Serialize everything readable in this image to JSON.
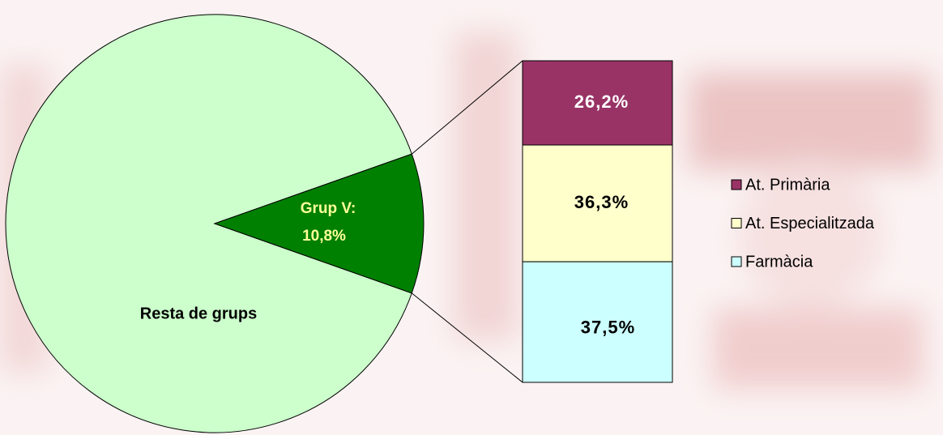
{
  "chart_data": {
    "type": "bar-of-pie",
    "pie": {
      "slices": [
        {
          "label": "Resta de grups",
          "value": 89.2,
          "color": "#ccffcc"
        },
        {
          "label": "Grup V:",
          "value": 10.8,
          "value_label": "10,8%",
          "color": "#008000"
        }
      ]
    },
    "bar": {
      "series": [
        {
          "name": "At. Primària",
          "color": "#993366",
          "values": [
            26.2
          ],
          "value_labels": [
            "26,2%"
          ]
        },
        {
          "name": "At. Especialitzada",
          "color": "#ffffcc",
          "values": [
            36.3
          ],
          "value_labels": [
            "36,3%"
          ]
        },
        {
          "name": "Farmàcia",
          "color": "#ccffff",
          "values": [
            37.5
          ],
          "value_labels": [
            "37,5%"
          ]
        }
      ]
    }
  }
}
